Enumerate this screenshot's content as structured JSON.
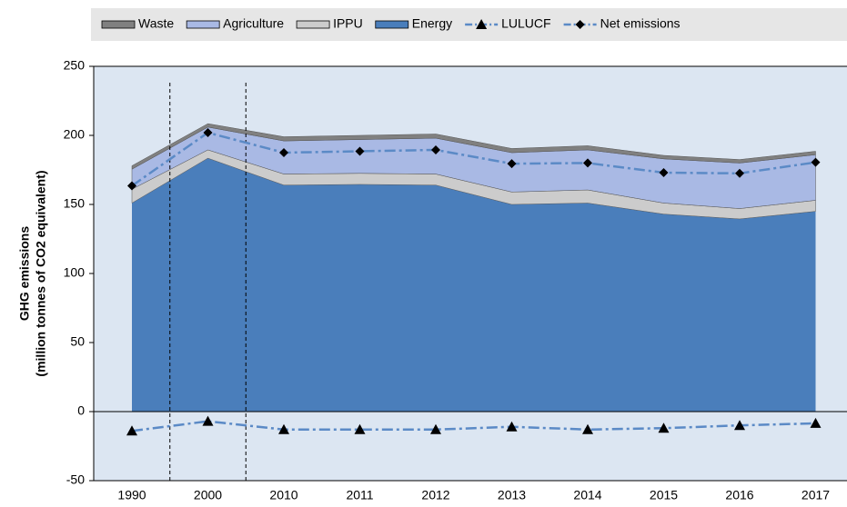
{
  "chart_data": {
    "type": "stacked_area_line",
    "ylabel": [
      "GHG emissions",
      "(million tonnes of CO2 equivalent)"
    ],
    "categories": [
      "1990",
      "2000",
      "2010",
      "2011",
      "2012",
      "2013",
      "2014",
      "2015",
      "2016",
      "2017"
    ],
    "series": [
      {
        "name": "Waste",
        "kind": "area",
        "color": "#808080",
        "values": [
          2.5,
          2.5,
          3,
          3,
          3,
          3,
          3,
          2.5,
          2.5,
          2.5
        ]
      },
      {
        "name": "Agriculture",
        "kind": "area",
        "color": "#a9b9e4",
        "values": [
          14.5,
          16.5,
          24,
          24.5,
          26,
          28.5,
          29,
          32,
          33,
          33
        ]
      },
      {
        "name": "IPPU",
        "kind": "area",
        "color": "#cccccc",
        "values": [
          10,
          6,
          8,
          8,
          8,
          9,
          9.5,
          8,
          7.5,
          8
        ]
      },
      {
        "name": "Energy",
        "kind": "area",
        "color": "#4a7ebb",
        "values": [
          151,
          183.5,
          164,
          164.5,
          164,
          150,
          151,
          143,
          139.5,
          145
        ]
      },
      {
        "name": "LULUCF",
        "kind": "line",
        "marker": "triangle",
        "color": "#5b8ac6",
        "values": [
          -14,
          -7,
          -13,
          -13,
          -13,
          -11,
          -13,
          -12,
          -10,
          -8.5
        ]
      },
      {
        "name": "Net emissions",
        "kind": "line",
        "marker": "diamond",
        "color": "#5b8ac6",
        "values": [
          163.5,
          202,
          187.5,
          188.5,
          189.5,
          179.5,
          180,
          173,
          172.5,
          180.5
        ]
      }
    ],
    "stack_order": [
      "Energy",
      "IPPU",
      "Agriculture",
      "Waste"
    ],
    "ylim": [
      -50,
      250
    ],
    "yticks": [
      -50,
      0,
      50,
      100,
      150,
      200,
      250
    ],
    "plot_background": "#dce6f2"
  }
}
